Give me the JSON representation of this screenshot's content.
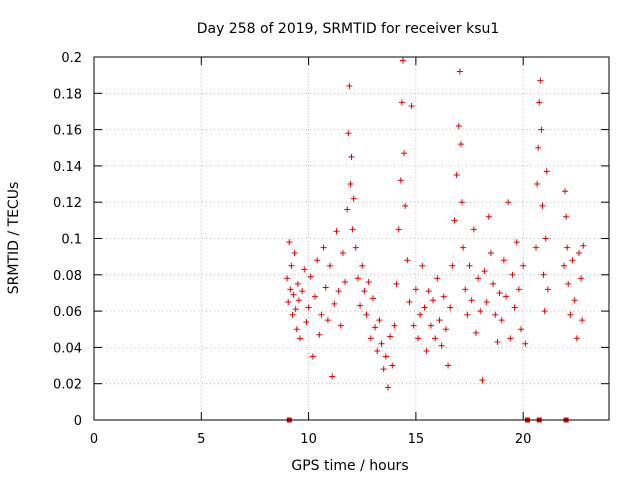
{
  "chart_data": {
    "type": "scatter",
    "title": "Day 258 of 2019, SRMTID for receiver ksu1",
    "xlabel": "GPS time / hours",
    "ylabel": "SRMTID / TECUs",
    "xlim": [
      0,
      24
    ],
    "ylim": [
      0,
      0.2
    ],
    "grid": true,
    "marker": "+",
    "color": "#e00000",
    "x_ticks": [
      0,
      5,
      10,
      15,
      20
    ],
    "x_tick_labels": [
      "0",
      "5",
      "10",
      "15",
      "20"
    ],
    "y_ticks": [
      0,
      0.02,
      0.04,
      0.06,
      0.08,
      0.1,
      0.12,
      0.14,
      0.16,
      0.18,
      0.2
    ],
    "y_tick_labels": [
      "0",
      "0.02",
      "0.04",
      "0.06",
      "0.08",
      "0.1",
      "0.12",
      "0.14",
      "0.16",
      "0.18",
      "0.2"
    ],
    "series": [
      {
        "name": "SRMTID",
        "points": [
          [
            9.0,
            0.078
          ],
          [
            9.05,
            0.065
          ],
          [
            9.1,
            0.098
          ],
          [
            9.15,
            0.072
          ],
          [
            9.2,
            0.085
          ],
          [
            9.25,
            0.058
          ],
          [
            9.3,
            0.069
          ],
          [
            9.35,
            0.092
          ],
          [
            9.4,
            0.061
          ],
          [
            9.45,
            0.05
          ],
          [
            9.5,
            0.075
          ],
          [
            9.55,
            0.066
          ],
          [
            9.6,
            0.045
          ],
          [
            9.7,
            0.071
          ],
          [
            9.8,
            0.083
          ],
          [
            9.9,
            0.054
          ],
          [
            10.0,
            0.062
          ],
          [
            10.1,
            0.079
          ],
          [
            10.2,
            0.035
          ],
          [
            10.3,
            0.068
          ],
          [
            10.4,
            0.088
          ],
          [
            10.5,
            0.047
          ],
          [
            10.6,
            0.058
          ],
          [
            10.7,
            0.095
          ],
          [
            10.8,
            0.073
          ],
          [
            10.9,
            0.055
          ],
          [
            11.0,
            0.085
          ],
          [
            11.1,
            0.024
          ],
          [
            11.2,
            0.064
          ],
          [
            11.3,
            0.104
          ],
          [
            11.4,
            0.071
          ],
          [
            11.5,
            0.052
          ],
          [
            11.6,
            0.092
          ],
          [
            11.7,
            0.076
          ],
          [
            11.8,
            0.116
          ],
          [
            11.85,
            0.158
          ],
          [
            11.9,
            0.184
          ],
          [
            11.95,
            0.13
          ],
          [
            12.0,
            0.145
          ],
          [
            12.05,
            0.105
          ],
          [
            12.1,
            0.122
          ],
          [
            12.2,
            0.095
          ],
          [
            12.3,
            0.078
          ],
          [
            12.4,
            0.063
          ],
          [
            12.5,
            0.085
          ],
          [
            12.6,
            0.071
          ],
          [
            12.7,
            0.058
          ],
          [
            12.8,
            0.076
          ],
          [
            12.9,
            0.045
          ],
          [
            13.0,
            0.067
          ],
          [
            13.1,
            0.051
          ],
          [
            13.2,
            0.038
          ],
          [
            13.3,
            0.055
          ],
          [
            13.4,
            0.042
          ],
          [
            13.5,
            0.028
          ],
          [
            13.6,
            0.035
          ],
          [
            13.7,
            0.018
          ],
          [
            13.8,
            0.046
          ],
          [
            13.9,
            0.03
          ],
          [
            14.0,
            0.052
          ],
          [
            14.1,
            0.075
          ],
          [
            14.2,
            0.105
          ],
          [
            14.3,
            0.132
          ],
          [
            14.35,
            0.175
          ],
          [
            14.4,
            0.198
          ],
          [
            14.45,
            0.147
          ],
          [
            14.5,
            0.118
          ],
          [
            14.6,
            0.088
          ],
          [
            14.7,
            0.065
          ],
          [
            14.8,
            0.173
          ],
          [
            14.9,
            0.052
          ],
          [
            15.0,
            0.072
          ],
          [
            15.1,
            0.045
          ],
          [
            15.2,
            0.058
          ],
          [
            15.3,
            0.085
          ],
          [
            15.4,
            0.062
          ],
          [
            15.5,
            0.038
          ],
          [
            15.6,
            0.071
          ],
          [
            15.7,
            0.052
          ],
          [
            15.8,
            0.066
          ],
          [
            15.9,
            0.045
          ],
          [
            16.0,
            0.078
          ],
          [
            16.1,
            0.055
          ],
          [
            16.2,
            0.041
          ],
          [
            16.3,
            0.068
          ],
          [
            16.4,
            0.05
          ],
          [
            16.5,
            0.03
          ],
          [
            16.6,
            0.062
          ],
          [
            16.7,
            0.085
          ],
          [
            16.8,
            0.11
          ],
          [
            16.9,
            0.135
          ],
          [
            17.0,
            0.162
          ],
          [
            17.05,
            0.192
          ],
          [
            17.1,
            0.152
          ],
          [
            17.15,
            0.12
          ],
          [
            17.2,
            0.095
          ],
          [
            17.3,
            0.072
          ],
          [
            17.4,
            0.058
          ],
          [
            17.5,
            0.085
          ],
          [
            17.6,
            0.066
          ],
          [
            17.7,
            0.105
          ],
          [
            17.8,
            0.048
          ],
          [
            17.9,
            0.078
          ],
          [
            18.0,
            0.06
          ],
          [
            18.1,
            0.022
          ],
          [
            18.2,
            0.082
          ],
          [
            18.3,
            0.065
          ],
          [
            18.4,
            0.112
          ],
          [
            18.5,
            0.092
          ],
          [
            18.6,
            0.075
          ],
          [
            18.7,
            0.058
          ],
          [
            18.8,
            0.043
          ],
          [
            18.9,
            0.07
          ],
          [
            19.0,
            0.055
          ],
          [
            19.1,
            0.088
          ],
          [
            19.2,
            0.068
          ],
          [
            19.3,
            0.12
          ],
          [
            19.4,
            0.045
          ],
          [
            19.5,
            0.08
          ],
          [
            19.6,
            0.062
          ],
          [
            19.7,
            0.098
          ],
          [
            19.8,
            0.072
          ],
          [
            19.9,
            0.05
          ],
          [
            20.0,
            0.085
          ],
          [
            20.1,
            0.042
          ],
          [
            20.6,
            0.095
          ],
          [
            20.65,
            0.13
          ],
          [
            20.7,
            0.15
          ],
          [
            20.75,
            0.175
          ],
          [
            20.8,
            0.187
          ],
          [
            20.85,
            0.16
          ],
          [
            20.9,
            0.118
          ],
          [
            20.95,
            0.08
          ],
          [
            21.0,
            0.06
          ],
          [
            21.05,
            0.1
          ],
          [
            21.1,
            0.137
          ],
          [
            21.15,
            0.072
          ],
          [
            21.9,
            0.085
          ],
          [
            21.95,
            0.126
          ],
          [
            22.0,
            0.112
          ],
          [
            22.05,
            0.095
          ],
          [
            22.1,
            0.075
          ],
          [
            22.2,
            0.058
          ],
          [
            22.3,
            0.088
          ],
          [
            22.4,
            0.066
          ],
          [
            22.5,
            0.045
          ],
          [
            22.6,
            0.092
          ],
          [
            22.7,
            0.078
          ],
          [
            22.75,
            0.055
          ],
          [
            22.8,
            0.096
          ]
        ]
      }
    ],
    "gap_markers_x": [
      9.1,
      20.2,
      20.75,
      22.0
    ]
  }
}
